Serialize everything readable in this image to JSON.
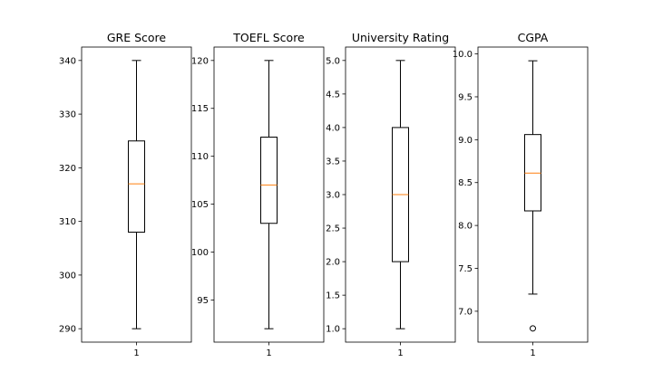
{
  "chart_data": [
    {
      "type": "box",
      "title": "GRE Score",
      "x_tick_labels": [
        "1"
      ],
      "ylim": [
        287.5,
        342.5
      ],
      "y_ticks": [
        290,
        300,
        310,
        320,
        330,
        340
      ],
      "y_tick_labels": [
        "290",
        "300",
        "310",
        "320",
        "330",
        "340"
      ],
      "box": {
        "whisker_low": 290,
        "q1": 308,
        "median": 317,
        "q3": 325,
        "whisker_high": 340
      },
      "outliers": []
    },
    {
      "type": "box",
      "title": "TOEFL Score",
      "x_tick_labels": [
        "1"
      ],
      "ylim": [
        90.6,
        121.4
      ],
      "y_ticks": [
        95,
        100,
        105,
        110,
        115,
        120
      ],
      "y_tick_labels": [
        "95",
        "100",
        "105",
        "110",
        "115",
        "120"
      ],
      "box": {
        "whisker_low": 92,
        "q1": 103,
        "median": 107,
        "q3": 112,
        "whisker_high": 120
      },
      "outliers": []
    },
    {
      "type": "box",
      "title": "University Rating",
      "x_tick_labels": [
        "1"
      ],
      "ylim": [
        0.8,
        5.2
      ],
      "y_ticks": [
        1.0,
        1.5,
        2.0,
        2.5,
        3.0,
        3.5,
        4.0,
        4.5,
        5.0
      ],
      "y_tick_labels": [
        "1.0",
        "1.5",
        "2.0",
        "2.5",
        "3.0",
        "3.5",
        "4.0",
        "4.5",
        "5.0"
      ],
      "box": {
        "whisker_low": 1.0,
        "q1": 2.0,
        "median": 3.0,
        "q3": 4.0,
        "whisker_high": 5.0
      },
      "outliers": []
    },
    {
      "type": "box",
      "title": "CGPA",
      "x_tick_labels": [
        "1"
      ],
      "ylim": [
        6.64,
        10.08
      ],
      "y_ticks": [
        7.0,
        7.5,
        8.0,
        8.5,
        9.0,
        9.5,
        10.0
      ],
      "y_tick_labels": [
        "7.0",
        "7.5",
        "8.0",
        "8.5",
        "9.0",
        "9.5",
        "10.0"
      ],
      "box": {
        "whisker_low": 7.2,
        "q1": 8.17,
        "median": 8.61,
        "q3": 9.06,
        "whisker_high": 9.92
      },
      "outliers": [
        6.8
      ]
    }
  ],
  "style": {
    "box_color": "#000000",
    "median_color": "#ff7f0e",
    "background": "#ffffff"
  }
}
